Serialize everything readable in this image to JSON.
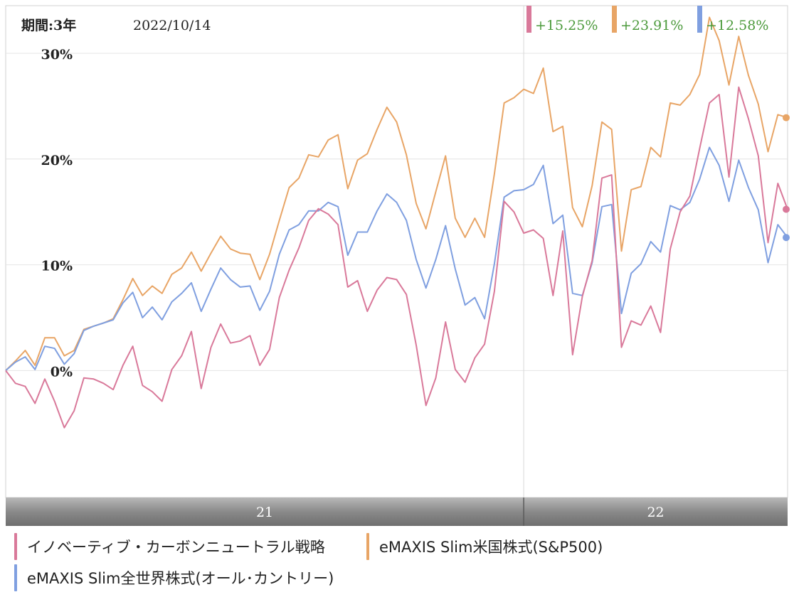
{
  "header": {
    "period_label": "期間:3年",
    "date": "2022/10/14"
  },
  "colors": {
    "pink": "#d9799a",
    "orange": "#e8a566",
    "blue": "#7f9fe0",
    "gain_text": "#4c9a3c"
  },
  "chart_data": {
    "type": "line",
    "y_unit": "%",
    "ylim": [
      -12,
      34.5
    ],
    "yticks": [
      {
        "value": 0,
        "label": "0%"
      },
      {
        "value": 10,
        "label": "10%"
      },
      {
        "value": 20,
        "label": "20%"
      },
      {
        "value": 30,
        "label": "30%"
      }
    ],
    "x_axis": {
      "year_labels": [
        "21",
        "22"
      ],
      "divider_index": 53
    },
    "grid": true,
    "legend_position": "bottom",
    "series": [
      {
        "name": "イノベーティブ・カーボンニュートラル戦略",
        "color_key": "pink",
        "end_label": "+15.25%",
        "values": [
          0,
          -1.2,
          -1.5,
          -3.1,
          -0.8,
          -2.9,
          -5.4,
          -3.8,
          -0.7,
          -0.8,
          -1.2,
          -1.8,
          0.5,
          2.3,
          -1.4,
          -2.0,
          -2.9,
          0.1,
          1.4,
          3.7,
          -1.7,
          2.2,
          4.4,
          2.6,
          2.8,
          3.3,
          0.5,
          2.0,
          6.9,
          9.5,
          11.6,
          14.2,
          15.3,
          14.8,
          13.8,
          7.9,
          8.5,
          5.6,
          7.6,
          8.8,
          8.6,
          7.2,
          2.4,
          -3.3,
          -0.7,
          4.6,
          0.1,
          -1.1,
          1.2,
          2.5,
          7.5,
          16.0,
          15.0,
          13.0,
          13.3,
          12.5,
          7.1,
          13.2,
          1.5,
          7.0,
          10.4,
          18.2,
          18.5,
          2.2,
          4.7,
          4.3,
          6.1,
          3.6,
          11.5,
          15.0,
          16.5,
          21.0,
          25.3,
          26.1,
          18.3,
          26.8,
          23.8,
          20.3,
          12.1,
          17.7,
          15.25
        ]
      },
      {
        "name": "eMAXIS Slim米国株式(S&P500)",
        "color_key": "orange",
        "end_label": "+23.91%",
        "values": [
          0,
          0.9,
          1.9,
          0.5,
          3.1,
          3.1,
          1.4,
          1.9,
          3.9,
          4.2,
          4.5,
          4.9,
          6.7,
          8.7,
          7.1,
          8.0,
          7.3,
          9.1,
          9.7,
          11.2,
          9.4,
          11.1,
          12.7,
          11.5,
          11.1,
          11.0,
          8.6,
          11.0,
          14.2,
          17.3,
          18.2,
          20.4,
          20.2,
          21.8,
          22.3,
          17.2,
          19.9,
          20.5,
          22.8,
          24.9,
          23.5,
          20.4,
          15.8,
          13.4,
          16.9,
          20.3,
          14.4,
          12.6,
          14.4,
          12.6,
          18.6,
          25.3,
          25.8,
          26.6,
          26.2,
          28.6,
          22.6,
          23.1,
          15.4,
          13.6,
          17.5,
          23.5,
          22.8,
          11.3,
          17.1,
          17.4,
          21.1,
          20.2,
          25.3,
          25.1,
          26.1,
          28.0,
          33.4,
          31.2,
          27.0,
          31.6,
          27.9,
          25.2,
          20.7,
          24.2,
          23.91
        ]
      },
      {
        "name": "eMAXIS Slim全世界株式(オール･カントリー)",
        "color_key": "blue",
        "end_label": "+12.58%",
        "values": [
          0,
          0.8,
          1.3,
          0.1,
          2.3,
          2.1,
          0.6,
          1.6,
          3.8,
          4.2,
          4.5,
          4.8,
          6.4,
          7.4,
          5.0,
          6.0,
          4.8,
          6.5,
          7.3,
          8.3,
          5.6,
          7.7,
          9.7,
          8.6,
          7.9,
          8.0,
          5.7,
          7.5,
          11.0,
          13.3,
          13.8,
          15.1,
          15.1,
          15.9,
          15.5,
          10.9,
          13.1,
          13.1,
          15.1,
          16.7,
          15.9,
          14.2,
          10.5,
          7.8,
          10.5,
          13.7,
          9.6,
          6.2,
          6.9,
          4.9,
          10.1,
          16.4,
          17.0,
          17.1,
          17.6,
          19.4,
          13.9,
          14.7,
          7.3,
          7.1,
          10.2,
          15.5,
          15.7,
          5.4,
          9.2,
          10.1,
          12.2,
          11.2,
          15.6,
          15.2,
          15.9,
          18.1,
          21.1,
          19.4,
          16.0,
          19.9,
          17.3,
          15.2,
          10.2,
          13.8,
          12.58
        ]
      }
    ]
  }
}
